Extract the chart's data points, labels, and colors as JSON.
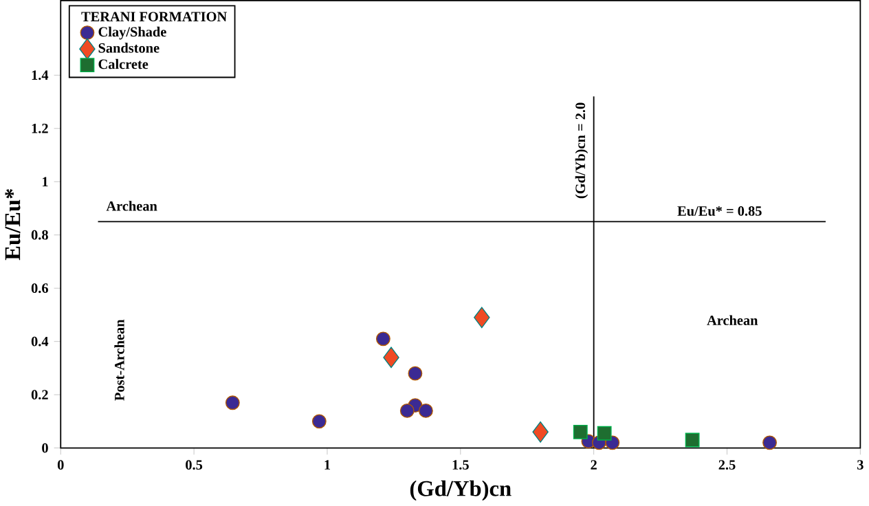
{
  "chart_data": {
    "type": "scatter",
    "xlabel": "(Gd/Yb)cn",
    "ylabel": "Eu/Eu*",
    "legend_title": "TERANI FORMATION",
    "legend": "top left",
    "xlim": [
      0,
      3
    ],
    "xticks": [
      0,
      0.5,
      1,
      1.5,
      2,
      2.5,
      3
    ],
    "ylim": [
      0,
      1.68
    ],
    "yticks": [
      0,
      0.2,
      0.4,
      0.6,
      0.8,
      1,
      1.2,
      1.4
    ],
    "grid": false,
    "series": [
      {
        "name": "Clay/Shade",
        "color": "#3b2a93",
        "marker": "circle",
        "x": [
          0.645,
          0.97,
          1.21,
          1.33,
          1.33,
          1.3,
          1.37,
          1.98,
          2.02,
          2.07,
          2.66
        ],
        "values": [
          0.17,
          0.1,
          0.41,
          0.28,
          0.16,
          0.14,
          0.14,
          0.025,
          0.02,
          0.02,
          0.02
        ]
      },
      {
        "name": "Sandstone",
        "color": "#f04a23",
        "marker": "diamond",
        "x": [
          1.24,
          1.58,
          1.8
        ],
        "values": [
          0.34,
          0.49,
          0.06
        ]
      },
      {
        "name": "Calcrete",
        "color": "#1e6e30",
        "marker": "square",
        "x": [
          1.95,
          2.04,
          2.37
        ],
        "values": [
          0.06,
          0.055,
          0.03
        ]
      }
    ],
    "ref_lines": [
      {
        "axis": "x",
        "value": 2.0,
        "label": "(Gd/Yb)cn = 2.0",
        "color": "#000000"
      },
      {
        "axis": "y",
        "value": 0.85,
        "label": "Eu/Eu* = 0.85",
        "color": "#000000"
      }
    ],
    "annotations": [
      "Archean",
      "Post-Archean",
      "Archean"
    ]
  }
}
